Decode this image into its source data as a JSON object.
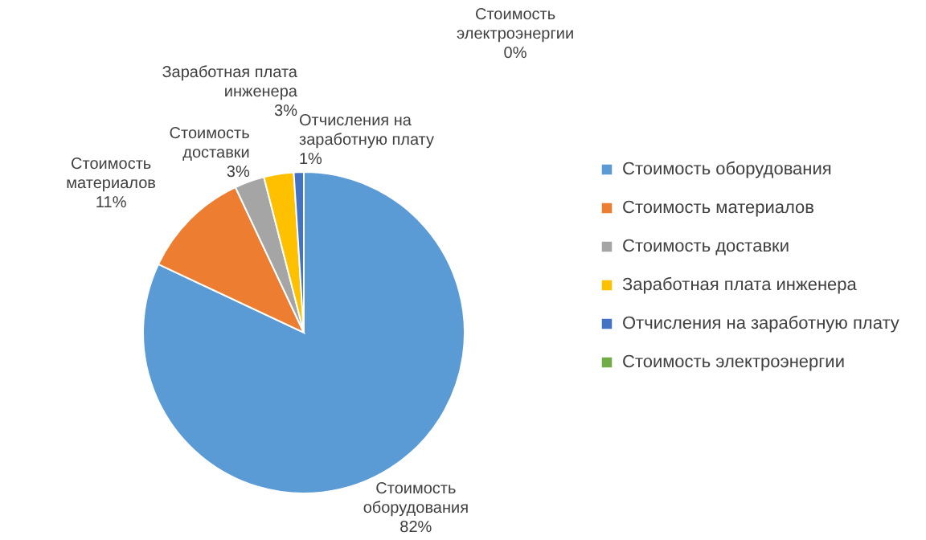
{
  "chart_data": {
    "type": "pie",
    "categories": [
      "Стоимость оборудования",
      "Стоимость материалов",
      "Стоимость доставки",
      "Заработная плата инженера",
      "Отчисления на заработную плату",
      "Стоимость электроэнергии"
    ],
    "values": [
      82,
      11,
      3,
      3,
      1,
      0
    ],
    "colors": [
      "#5b9bd5",
      "#ed7d31",
      "#a5a5a5",
      "#ffc000",
      "#4472c4",
      "#70ad47"
    ],
    "value_labels": [
      "82%",
      "11%",
      "3%",
      "3%",
      "1%",
      "0%"
    ],
    "legend": "right"
  }
}
